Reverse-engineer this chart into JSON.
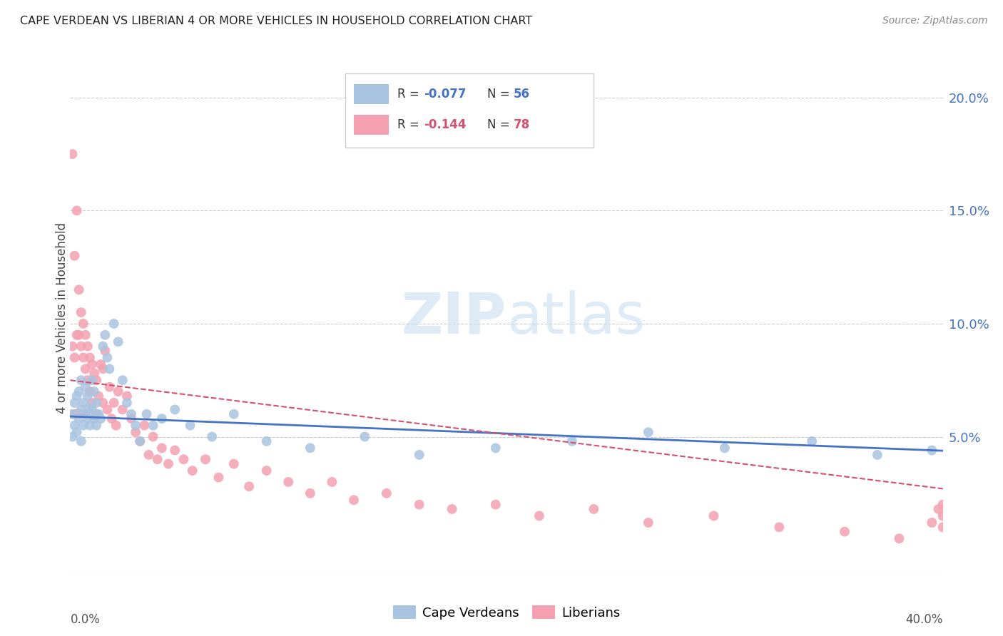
{
  "title": "CAPE VERDEAN VS LIBERIAN 4 OR MORE VEHICLES IN HOUSEHOLD CORRELATION CHART",
  "source": "Source: ZipAtlas.com",
  "ylabel": "4 or more Vehicles in Household",
  "xlim": [
    0.0,
    0.4
  ],
  "ylim": [
    -0.01,
    0.215
  ],
  "yticks": [
    0.05,
    0.1,
    0.15,
    0.2
  ],
  "ytick_labels": [
    "5.0%",
    "10.0%",
    "15.0%",
    "20.0%"
  ],
  "blue_color": "#a8c4e0",
  "pink_color": "#f4a0b0",
  "line_blue": "#4472c4",
  "line_pink": "#d45070",
  "blue_R": -0.077,
  "blue_intercept": 0.059,
  "blue_slope": -0.038,
  "pink_R": -0.144,
  "pink_intercept": 0.075,
  "pink_slope": -0.12,
  "cape_verdean_x": [
    0.001,
    0.001,
    0.002,
    0.002,
    0.003,
    0.003,
    0.004,
    0.004,
    0.005,
    0.005,
    0.005,
    0.006,
    0.006,
    0.007,
    0.007,
    0.008,
    0.008,
    0.009,
    0.009,
    0.01,
    0.01,
    0.011,
    0.011,
    0.012,
    0.012,
    0.013,
    0.014,
    0.015,
    0.016,
    0.017,
    0.018,
    0.02,
    0.022,
    0.024,
    0.026,
    0.028,
    0.03,
    0.032,
    0.035,
    0.038,
    0.042,
    0.048,
    0.055,
    0.065,
    0.075,
    0.09,
    0.11,
    0.135,
    0.16,
    0.195,
    0.23,
    0.265,
    0.3,
    0.34,
    0.37,
    0.395
  ],
  "cape_verdean_y": [
    0.06,
    0.05,
    0.065,
    0.055,
    0.068,
    0.052,
    0.07,
    0.058,
    0.075,
    0.062,
    0.048,
    0.065,
    0.055,
    0.072,
    0.06,
    0.068,
    0.058,
    0.063,
    0.055,
    0.075,
    0.062,
    0.07,
    0.058,
    0.065,
    0.055,
    0.06,
    0.058,
    0.09,
    0.095,
    0.085,
    0.08,
    0.1,
    0.092,
    0.075,
    0.065,
    0.06,
    0.055,
    0.048,
    0.06,
    0.055,
    0.058,
    0.062,
    0.055,
    0.05,
    0.06,
    0.048,
    0.045,
    0.05,
    0.042,
    0.045,
    0.048,
    0.052,
    0.045,
    0.048,
    0.042,
    0.044
  ],
  "liberian_x": [
    0.001,
    0.001,
    0.002,
    0.002,
    0.002,
    0.003,
    0.003,
    0.003,
    0.004,
    0.004,
    0.005,
    0.005,
    0.005,
    0.006,
    0.006,
    0.007,
    0.007,
    0.007,
    0.008,
    0.008,
    0.009,
    0.009,
    0.01,
    0.01,
    0.011,
    0.011,
    0.012,
    0.012,
    0.013,
    0.014,
    0.015,
    0.015,
    0.016,
    0.017,
    0.018,
    0.019,
    0.02,
    0.021,
    0.022,
    0.024,
    0.026,
    0.028,
    0.03,
    0.032,
    0.034,
    0.036,
    0.038,
    0.04,
    0.042,
    0.045,
    0.048,
    0.052,
    0.056,
    0.062,
    0.068,
    0.075,
    0.082,
    0.09,
    0.1,
    0.11,
    0.12,
    0.13,
    0.145,
    0.16,
    0.175,
    0.195,
    0.215,
    0.24,
    0.265,
    0.295,
    0.325,
    0.355,
    0.38,
    0.395,
    0.398,
    0.4,
    0.4,
    0.4
  ],
  "liberian_y": [
    0.175,
    0.09,
    0.13,
    0.085,
    0.06,
    0.15,
    0.095,
    0.06,
    0.115,
    0.095,
    0.105,
    0.09,
    0.06,
    0.1,
    0.085,
    0.095,
    0.08,
    0.06,
    0.09,
    0.075,
    0.085,
    0.07,
    0.082,
    0.065,
    0.078,
    0.058,
    0.075,
    0.06,
    0.068,
    0.082,
    0.08,
    0.065,
    0.088,
    0.062,
    0.072,
    0.058,
    0.065,
    0.055,
    0.07,
    0.062,
    0.068,
    0.058,
    0.052,
    0.048,
    0.055,
    0.042,
    0.05,
    0.04,
    0.045,
    0.038,
    0.044,
    0.04,
    0.035,
    0.04,
    0.032,
    0.038,
    0.028,
    0.035,
    0.03,
    0.025,
    0.03,
    0.022,
    0.025,
    0.02,
    0.018,
    0.02,
    0.015,
    0.018,
    0.012,
    0.015,
    0.01,
    0.008,
    0.005,
    0.012,
    0.018,
    0.02,
    0.015,
    0.01
  ]
}
